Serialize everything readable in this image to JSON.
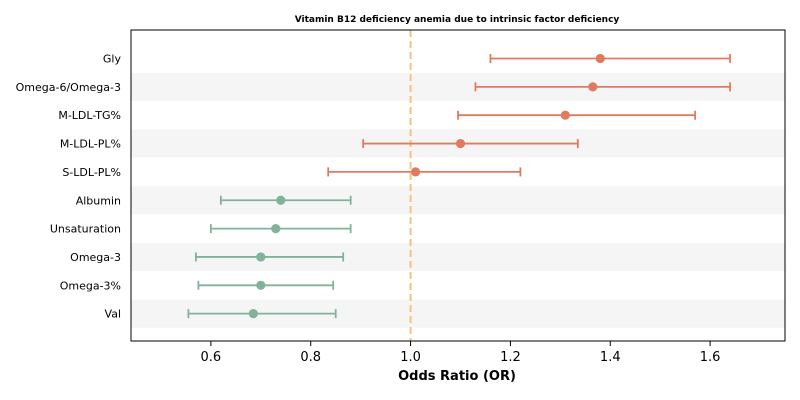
{
  "chart_data": {
    "type": "forest",
    "title": "Vitamin B12 deficiency anemia due to intrinsic factor deficiency",
    "xlabel": "Odds Ratio (OR)",
    "xlim": [
      0.44,
      1.75
    ],
    "xticks": [
      0.6,
      0.8,
      1.0,
      1.2,
      1.4,
      1.6
    ],
    "xtick_labels": [
      "0.6",
      "0.8",
      "1.0",
      "1.2",
      "1.4",
      "1.6"
    ],
    "reference_line": 1.0,
    "colors": {
      "risk": "#e07a5f",
      "protective": "#81b29a",
      "reference": "#f2c37f",
      "band": "#f5f5f5"
    },
    "rows": [
      {
        "label": "Gly",
        "or": 1.38,
        "lower": 1.16,
        "upper": 1.64,
        "group": "risk"
      },
      {
        "label": "Omega-6/Omega-3",
        "or": 1.365,
        "lower": 1.13,
        "upper": 1.64,
        "group": "risk"
      },
      {
        "label": "M-LDL-TG%",
        "or": 1.31,
        "lower": 1.095,
        "upper": 1.57,
        "group": "risk"
      },
      {
        "label": "M-LDL-PL%",
        "or": 1.1,
        "lower": 0.905,
        "upper": 1.335,
        "group": "risk"
      },
      {
        "label": "S-LDL-PL%",
        "or": 1.01,
        "lower": 0.835,
        "upper": 1.22,
        "group": "risk"
      },
      {
        "label": "Albumin",
        "or": 0.74,
        "lower": 0.62,
        "upper": 0.88,
        "group": "protective"
      },
      {
        "label": "Unsaturation",
        "or": 0.73,
        "lower": 0.6,
        "upper": 0.88,
        "group": "protective"
      },
      {
        "label": "Omega-3",
        "or": 0.7,
        "lower": 0.57,
        "upper": 0.865,
        "group": "protective"
      },
      {
        "label": "Omega-3%",
        "or": 0.7,
        "lower": 0.575,
        "upper": 0.845,
        "group": "protective"
      },
      {
        "label": "Val",
        "or": 0.685,
        "lower": 0.555,
        "upper": 0.85,
        "group": "protective"
      }
    ]
  }
}
